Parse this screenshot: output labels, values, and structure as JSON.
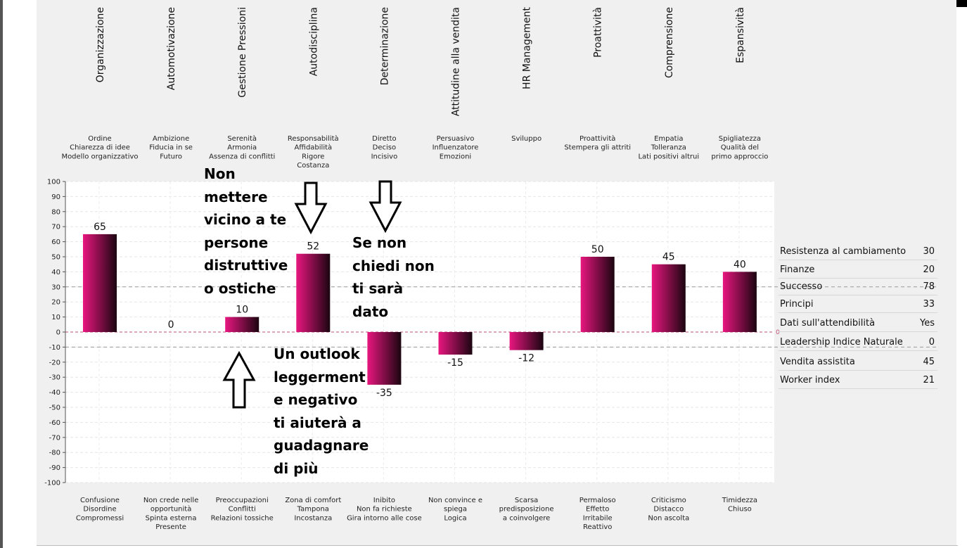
{
  "chart_data": {
    "type": "bar",
    "categories": [
      "Organizzazione",
      "Automotivazione",
      "Gestione Pressioni",
      "Autodisciplina",
      "Determinazione",
      "Attitudine alla vendita",
      "HR Management",
      "Proattività",
      "Comprensione",
      "Espansività"
    ],
    "values": [
      65,
      0,
      10,
      52,
      -35,
      -15,
      -12,
      50,
      45,
      40
    ],
    "data_labels": [
      "65",
      "0",
      "10",
      "52",
      "-35",
      "-15",
      "-12",
      "50",
      "45",
      "40"
    ],
    "top_descriptors": [
      [
        "Ordine",
        "Chiarezza di idee",
        "Modello organizzativo"
      ],
      [
        "Ambizione",
        "Fiducia in se",
        "Futuro"
      ],
      [
        "Serenità",
        "Armonia",
        "Assenza di conflitti"
      ],
      [
        "Responsabilità",
        "Affidabilità",
        "Rigore",
        "Costanza"
      ],
      [
        "Diretto",
        "Deciso",
        "Incisivo"
      ],
      [
        "Persuasivo",
        "Influenzatore",
        "Emozioni"
      ],
      [
        "Sviluppo"
      ],
      [
        "Proattività",
        "Stempera gli attriti"
      ],
      [
        "Empatia",
        "Tolleranza",
        "Lati positivi altrui"
      ],
      [
        "Spigliatezza",
        "Qualità del",
        "primo approccio"
      ]
    ],
    "bottom_descriptors": [
      [
        "Confusione",
        "Disordine",
        "Compromessi"
      ],
      [
        "Non crede nelle",
        "opportunità",
        "Spinta esterna",
        "Presente"
      ],
      [
        "Preoccupazioni",
        "Conflitti",
        "Relazioni tossiche"
      ],
      [
        "Zona di comfort",
        "Tampona",
        "Incostanza"
      ],
      [
        "Inibito",
        "Non fa richieste",
        "Gira intorno alle cose"
      ],
      [
        "Non convince e",
        "spiega",
        "Logica"
      ],
      [
        "Scarsa",
        "predisposizione",
        "a coinvolgere"
      ],
      [
        "Permaloso",
        "Effetto",
        "Irritabile",
        "Reattivo"
      ],
      [
        "Criticismo",
        "Distacco",
        "Non ascolta"
      ],
      [
        "Timidezza",
        "Chiuso"
      ]
    ],
    "ylim": [
      -100,
      100
    ],
    "ytick_step": 10,
    "yticks": [
      "100",
      "90",
      "80",
      "70",
      "60",
      "50",
      "40",
      "30",
      "20",
      "10",
      "0",
      "-10",
      "-20",
      "-30",
      "-40",
      "-50",
      "-60",
      "-70",
      "-80",
      "-90",
      "-100"
    ],
    "reference_lines": [
      30,
      -10
    ],
    "zero_marker": "0",
    "grid": true,
    "bar_gradient": [
      "#e8167f",
      "#1a0510"
    ],
    "xlabel": "",
    "ylabel": ""
  },
  "stats": [
    {
      "label": "Resistenza al cambiamento",
      "value": "30"
    },
    {
      "label": "Finanze",
      "value": "20"
    },
    {
      "label": "Successo",
      "value": "78"
    },
    {
      "label": "Principi",
      "value": "33"
    },
    {
      "label": "Dati sull'attendibilità",
      "value": "Yes"
    },
    {
      "label": "Leadership Indice Naturale",
      "value": "0"
    },
    {
      "label": "Vendita assistita",
      "value": "45"
    },
    {
      "label": "Worker index",
      "value": "21"
    }
  ],
  "annotations": {
    "note1": "Non\nmettere\nvicino a te\npersone\ndistruttive\no ostiche",
    "note2": "Se non\nchiedi non\nti sarà\ndato",
    "note3": "Un outlook\nleggerment\ne negativo\nti aiuterà a\nguadagnare\ndi più"
  }
}
